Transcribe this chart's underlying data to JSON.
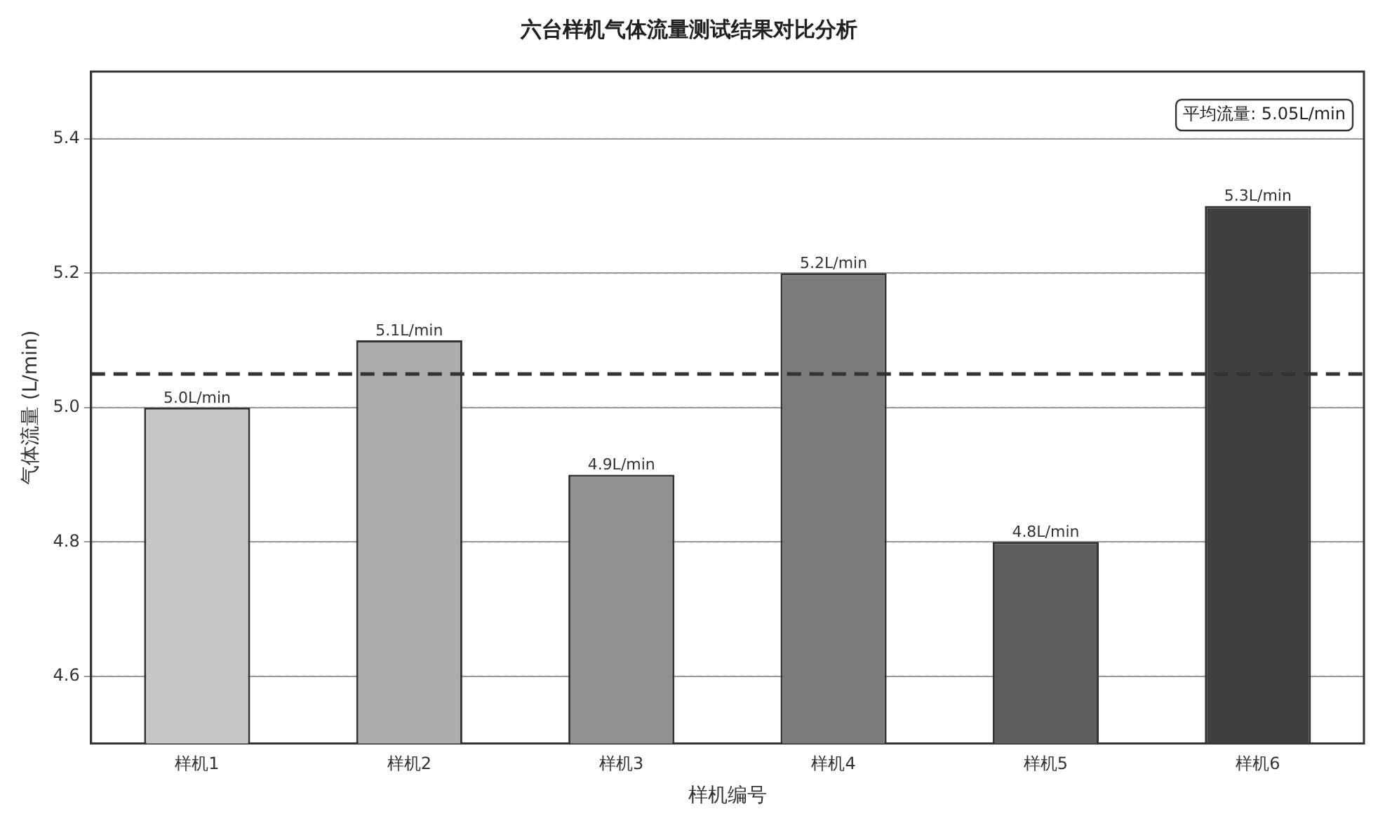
{
  "chart_data": {
    "type": "bar",
    "title": "六台样机气体流量测试结果对比分析",
    "xlabel": "样机编号",
    "ylabel": "气体流量 (L/min)",
    "categories": [
      "样机1",
      "样机2",
      "样机3",
      "样机4",
      "样机5",
      "样机6"
    ],
    "values": [
      5.0,
      5.1,
      4.9,
      5.2,
      4.8,
      5.3
    ],
    "colors": [
      "#c6c6c6",
      "#acacac",
      "#919191",
      "#7b7b7b",
      "#5f5f5f",
      "#3f3f3f"
    ],
    "value_labels": [
      "5.0L/min",
      "5.1L/min",
      "4.9L/min",
      "5.2L/min",
      "4.8L/min",
      "5.3L/min"
    ],
    "ylim": [
      4.5,
      5.5
    ],
    "yticks": [
      4.6,
      4.8,
      {
        "value": 5.0,
        "label": "5.0"
      },
      5.2,
      5.4
    ],
    "grid": "y",
    "ref_lines": [
      {
        "axis": "y",
        "value": 5.05,
        "label": "平均流量: 5.05L/min",
        "color": "#333333",
        "line_style": "dashed"
      }
    ]
  }
}
